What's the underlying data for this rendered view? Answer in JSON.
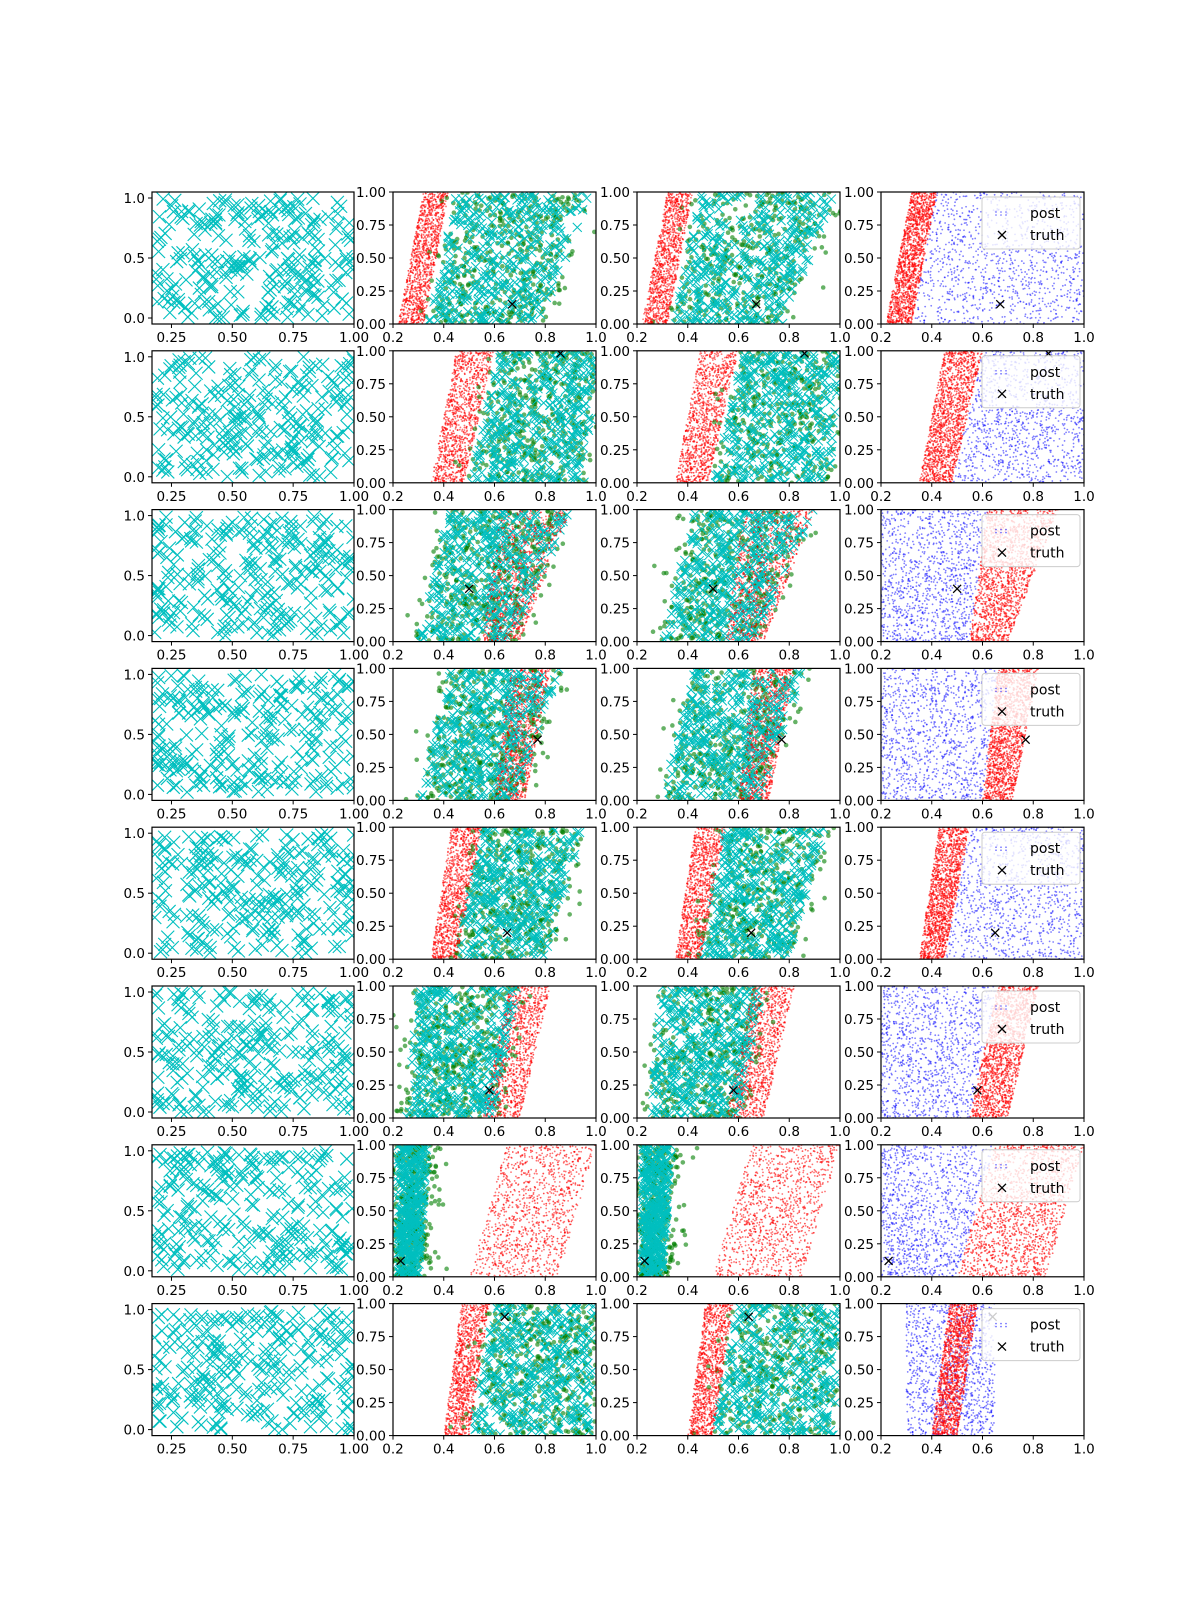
{
  "colors": {
    "prior": "#00bfbf",
    "green": "#007f00",
    "red": "#ff0000",
    "blue": "#0000ff",
    "truth": "#000000",
    "axis": "#000000"
  },
  "legend": {
    "post_label": "post",
    "truth_label": "truth",
    "placement": "top-right"
  },
  "chart_data": {
    "type": "scatter",
    "grid": false,
    "layout": {
      "rows": 8,
      "cols": 4
    },
    "columns": [
      {
        "kind": "prior",
        "xlim": [
          0.17,
          1.0
        ],
        "ylim": [
          -0.05,
          1.05
        ],
        "xticks": [
          0.25,
          0.5,
          0.75,
          1.0
        ],
        "xtick_labels": [
          "0.25",
          "0.50",
          "0.75",
          "1.00"
        ],
        "yticks": [
          0.0,
          0.5,
          1.0
        ],
        "ytick_labels": [
          "0.0",
          "0.5",
          "1.0"
        ]
      },
      {
        "kind": "samples",
        "xlim": [
          0.2,
          1.0
        ],
        "ylim": [
          0.0,
          1.0
        ],
        "xticks": [
          0.2,
          0.4,
          0.6,
          0.8,
          1.0
        ],
        "xtick_labels": [
          "0.2",
          "0.4",
          "0.6",
          "0.8",
          "1.0"
        ],
        "yticks": [
          0.0,
          0.25,
          0.5,
          0.75,
          1.0
        ],
        "ytick_labels": [
          "0.00",
          "0.25",
          "0.50",
          "0.75",
          "1.00"
        ]
      },
      {
        "kind": "samples",
        "xlim": [
          0.2,
          1.0
        ],
        "ylim": [
          0.0,
          1.0
        ],
        "xticks": [
          0.2,
          0.4,
          0.6,
          0.8,
          1.0
        ],
        "xtick_labels": [
          "0.2",
          "0.4",
          "0.6",
          "0.8",
          "1.0"
        ],
        "yticks": [
          0.0,
          0.25,
          0.5,
          0.75,
          1.0
        ],
        "ytick_labels": [
          "0.00",
          "0.25",
          "0.50",
          "0.75",
          "1.00"
        ]
      },
      {
        "kind": "posterior",
        "xlim": [
          0.2,
          1.0
        ],
        "ylim": [
          0.0,
          1.0
        ],
        "xticks": [
          0.2,
          0.4,
          0.6,
          0.8,
          1.0
        ],
        "xtick_labels": [
          "0.2",
          "0.4",
          "0.6",
          "0.8",
          "1.0"
        ],
        "yticks": [
          0.0,
          0.25,
          0.5,
          0.75,
          1.0
        ],
        "ytick_labels": [
          "0.00",
          "0.25",
          "0.50",
          "0.75",
          "1.00"
        ]
      }
    ],
    "rows": [
      {
        "truth": [
          0.67,
          0.15
        ],
        "red_band": [
          0.22,
          0.32,
          0.32,
          0.42
        ],
        "other_band": [
          0.34,
          0.78,
          0.45,
          0.98
        ],
        "blue_side": "right"
      },
      {
        "truth": [
          0.86,
          0.98
        ],
        "red_band": [
          0.35,
          0.48,
          0.45,
          0.6
        ],
        "other_band": [
          0.5,
          0.96,
          0.62,
          1.0
        ],
        "blue_side": "right"
      },
      {
        "truth": [
          0.5,
          0.4
        ],
        "red_band": [
          0.55,
          0.7,
          0.62,
          0.9
        ],
        "other_band": [
          0.3,
          0.66,
          0.42,
          0.9
        ],
        "blue_side": "left"
      },
      {
        "truth": [
          0.77,
          0.46
        ],
        "red_band": [
          0.6,
          0.72,
          0.66,
          0.82
        ],
        "other_band": [
          0.3,
          0.68,
          0.42,
          0.86
        ],
        "blue_side": "left"
      },
      {
        "truth": [
          0.65,
          0.2
        ],
        "red_band": [
          0.35,
          0.45,
          0.43,
          0.55
        ],
        "other_band": [
          0.45,
          0.8,
          0.55,
          0.95
        ],
        "blue_side": "right"
      },
      {
        "truth": [
          0.58,
          0.21
        ],
        "red_band": [
          0.55,
          0.7,
          0.66,
          0.82
        ],
        "other_band": [
          0.25,
          0.6,
          0.3,
          0.7
        ],
        "blue_side": "left"
      },
      {
        "truth": [
          0.23,
          0.12
        ],
        "red_band": [
          0.5,
          0.85,
          0.65,
          1.0
        ],
        "other_band": [
          0.22,
          0.3,
          0.22,
          0.34
        ],
        "blue_side": "left"
      },
      {
        "truth": [
          0.64,
          0.9
        ],
        "red_band": [
          0.4,
          0.5,
          0.47,
          0.58
        ],
        "other_band": [
          0.5,
          0.98,
          0.6,
          1.0
        ],
        "blue_side": "both"
      }
    ]
  }
}
